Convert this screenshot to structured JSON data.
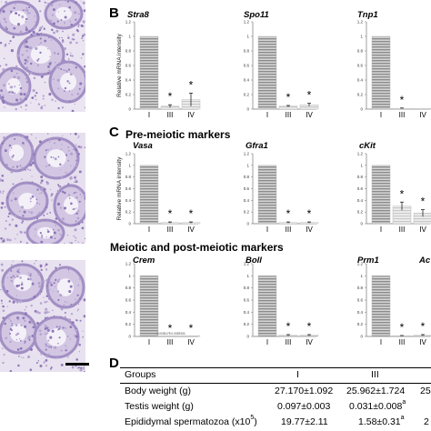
{
  "panel_B": {
    "letter": "B",
    "ylabel": "Relative mRNA intensity",
    "charts": [
      {
        "gene": "Stra8",
        "categories": [
          "I",
          "III",
          "IV"
        ],
        "values": [
          1,
          0.04,
          0.13
        ],
        "errors": [
          0,
          0.02,
          0.09
        ],
        "stars": [
          "",
          "*",
          "*"
        ]
      },
      {
        "gene": "Spo11",
        "categories": [
          "I",
          "III",
          "IV"
        ],
        "values": [
          1,
          0.04,
          0.06
        ],
        "errors": [
          0,
          0.01,
          0.02
        ],
        "stars": [
          "",
          "*",
          "*"
        ]
      },
      {
        "gene": "Tnp1",
        "categories": [
          "I",
          "III",
          "IV"
        ],
        "values": [
          1,
          0.01,
          0.0
        ],
        "errors": [
          0,
          0.005,
          0.0
        ],
        "stars": [
          "",
          "*",
          ""
        ]
      }
    ]
  },
  "panel_C": {
    "letter": "C",
    "ylabel": "Relative mRNA intensity",
    "premeiotic_title": "Pre-meiotic markers",
    "meiotic_title": "Meiotic and post-meiotic markers",
    "premeiotic": [
      {
        "gene": "Vasa",
        "categories": [
          "I",
          "III",
          "IV"
        ],
        "values": [
          1,
          0.02,
          0.02
        ],
        "errors": [
          0,
          0.01,
          0.01
        ],
        "stars": [
          "",
          "*",
          "*"
        ]
      },
      {
        "gene": "Gfra1",
        "categories": [
          "I",
          "III",
          "IV"
        ],
        "values": [
          1,
          0.02,
          0.02
        ],
        "errors": [
          0,
          0.01,
          0.01
        ],
        "stars": [
          "",
          "*",
          "*"
        ]
      },
      {
        "gene": "cKit",
        "categories": [
          "I",
          "III",
          "IV"
        ],
        "values": [
          1,
          0.3,
          0.18
        ],
        "errors": [
          0,
          0.07,
          0.06
        ],
        "stars": [
          "",
          "*",
          "*"
        ]
      }
    ],
    "meiotic": [
      {
        "gene": "Crem",
        "categories": [
          "I",
          "III",
          "IV"
        ],
        "values": [
          1,
          0.0,
          0.0
        ],
        "errors": [
          0,
          0.0,
          0.0
        ],
        "stars": [
          "",
          "*",
          "*"
        ],
        "note": "0.0035178 0.0039304"
      },
      {
        "gene": "Boll",
        "categories": [
          "I",
          "III",
          "IV"
        ],
        "values": [
          1,
          0.02,
          0.02
        ],
        "errors": [
          0,
          0.01,
          0.01
        ],
        "stars": [
          "",
          "*",
          "*"
        ]
      },
      {
        "gene": "Prm1",
        "categories": [
          "I",
          "III",
          "IV"
        ],
        "values": [
          1,
          0.01,
          0.02
        ],
        "errors": [
          0,
          0.005,
          0.01
        ],
        "stars": [
          "",
          "*",
          "*"
        ]
      },
      {
        "gene": "Ac",
        "categories": [],
        "values": [],
        "errors": [],
        "stars": []
      }
    ]
  },
  "panel_D": {
    "letter": "D",
    "header": {
      "label": "Groups",
      "col1": "I",
      "col2": "III",
      "col3": ""
    },
    "rows": [
      {
        "label": "Body weight (g)",
        "col1": "27.170±1.092",
        "col2": "25.962±1.724",
        "col3": "25"
      },
      {
        "label": "Testis weight (g)",
        "col1": "0.097±0.003",
        "col2": "0.031±0.008",
        "col2_sup": "a",
        "col3": ""
      },
      {
        "label": "Epididymal spermatozoa (x10",
        "label_sup": "5",
        "label_tail": ")",
        "col1": "19.77±2.11",
        "col2": "1.58±0.31",
        "col2_sup": "a",
        "col3": "2"
      }
    ]
  },
  "chart_data": [
    {
      "type": "bar",
      "title": "Stra8",
      "categories": [
        "I",
        "III",
        "IV"
      ],
      "values": [
        1,
        0.04,
        0.13
      ],
      "ylim": [
        0,
        1.2
      ]
    },
    {
      "type": "bar",
      "title": "Spo11",
      "categories": [
        "I",
        "III",
        "IV"
      ],
      "values": [
        1,
        0.04,
        0.06
      ],
      "ylim": [
        0,
        1.2
      ]
    },
    {
      "type": "bar",
      "title": "Tnp1",
      "categories": [
        "I",
        "III",
        "IV"
      ],
      "values": [
        1,
        0.01,
        0.0
      ],
      "ylim": [
        0,
        1.2
      ]
    },
    {
      "type": "bar",
      "title": "Vasa",
      "categories": [
        "I",
        "III",
        "IV"
      ],
      "values": [
        1,
        0.02,
        0.02
      ],
      "ylim": [
        0,
        1.2
      ]
    },
    {
      "type": "bar",
      "title": "Gfra1",
      "categories": [
        "I",
        "III",
        "IV"
      ],
      "values": [
        1,
        0.02,
        0.02
      ],
      "ylim": [
        0,
        1.2
      ]
    },
    {
      "type": "bar",
      "title": "cKit",
      "categories": [
        "I",
        "III",
        "IV"
      ],
      "values": [
        1,
        0.3,
        0.18
      ],
      "ylim": [
        0,
        1.2
      ]
    },
    {
      "type": "bar",
      "title": "Crem",
      "categories": [
        "I",
        "III",
        "IV"
      ],
      "values": [
        1,
        0.0035178,
        0.0039304
      ],
      "ylim": [
        0,
        1.2
      ]
    },
    {
      "type": "bar",
      "title": "Boll",
      "categories": [
        "I",
        "III",
        "IV"
      ],
      "values": [
        1,
        0.02,
        0.02
      ],
      "ylim": [
        0,
        1.2
      ]
    },
    {
      "type": "bar",
      "title": "Prm1",
      "categories": [
        "I",
        "III",
        "IV"
      ],
      "values": [
        1,
        0.01,
        0.02
      ],
      "ylim": [
        0,
        1.2
      ]
    }
  ],
  "colors": {
    "bar_stripe_dark": "#8c8c8c",
    "bar_stripe_light": "#d9d9d9",
    "histology_bg": "#e9e3f1",
    "histology_stain": "#9b86bf",
    "axis": "#555555"
  }
}
